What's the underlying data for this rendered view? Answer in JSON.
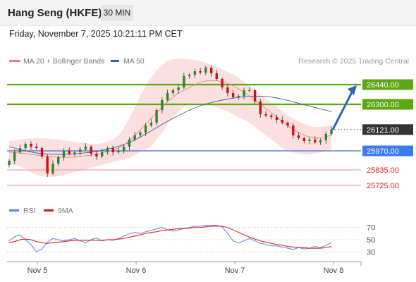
{
  "header": {
    "title": "Hang Seng (HKFE)",
    "timeframe": "30 MIN"
  },
  "datetime": "Friday, November 7, 2025 10:21:11 PM CET",
  "credit": "Research © 2025 Trading Central",
  "colors": {
    "resistance": "#5aa812",
    "support_line": "#3a6fd8",
    "support_label": "#3a7bf0",
    "lower_support": "#f5a3a3",
    "lower_support_text": "#e02020",
    "candle_up": "#2a8a2a",
    "candle_down": "#d01010",
    "ma20": "#f08080",
    "ma50": "#3a5f9a",
    "bollinger": "#fbd7d7",
    "rsi": "#5b85e0",
    "rsi_ma": "#e01010",
    "arrow": "#2f64b8",
    "last_price_bg": "#333333"
  },
  "chart_data": [
    {
      "type": "candlestick",
      "legend": [
        {
          "name": "MA 20 + Bollinger Bands",
          "color": "#f08080"
        },
        {
          "name": "MA 50",
          "color": "#3a5f9a"
        }
      ],
      "x_ticks": [
        "Nov 5",
        "Nov 6",
        "Nov 7",
        "Nov 8"
      ],
      "ylim": [
        25640,
        26540
      ],
      "levels": [
        {
          "label": "26440.00",
          "value": 26440,
          "kind": "resistance"
        },
        {
          "label": "26300.00",
          "value": 26300,
          "kind": "resistance"
        },
        {
          "label": "26121.00",
          "value": 26121,
          "kind": "last"
        },
        {
          "label": "25970.00",
          "value": 25970,
          "kind": "support"
        },
        {
          "label": "25835.00",
          "value": 25835,
          "kind": "minor_support"
        },
        {
          "label": "25725.00",
          "value": 25725,
          "kind": "minor_support"
        }
      ],
      "projection": {
        "from": 26121,
        "to": 26440
      },
      "close": [
        25900,
        25960,
        25990,
        26020,
        26000,
        25990,
        25930,
        25810,
        25880,
        25925,
        25970,
        25950,
        25960,
        25980,
        26000,
        25950,
        25930,
        25960,
        25990,
        25960,
        25970,
        26000,
        26050,
        26080,
        26100,
        26150,
        26170,
        26260,
        26330,
        26380,
        26400,
        26420,
        26500,
        26510,
        26535,
        26525,
        26560,
        26520,
        26480,
        26420,
        26380,
        26350,
        26360,
        26400,
        26400,
        26320,
        26230,
        26220,
        26210,
        26190,
        26170,
        26150,
        26080,
        26060,
        26040,
        26050,
        26030,
        26045,
        26090,
        26121
      ],
      "ma20": [
        25960,
        25958,
        25955,
        25950,
        25945,
        25940,
        25935,
        25930,
        25928,
        25925,
        25924,
        25924,
        25926,
        25930,
        25935,
        25940,
        25945,
        25955,
        25965,
        25975,
        25990,
        26010,
        26040,
        26080,
        26120,
        26160,
        26200,
        26240,
        26280,
        26320,
        26350,
        26380,
        26400,
        26420,
        26440,
        26455,
        26465,
        26470,
        26468,
        26460,
        26450,
        26430,
        26410,
        26385,
        26360,
        26330,
        26300,
        26270,
        26240,
        26210,
        26180,
        26150,
        26120,
        26100,
        26080,
        26070,
        26060,
        26060,
        26070,
        26080
      ],
      "bb_upper": [
        26040,
        26045,
        26050,
        26055,
        26058,
        26060,
        26060,
        26058,
        26055,
        26050,
        26045,
        26040,
        26035,
        26030,
        26025,
        26020,
        26020,
        26025,
        26035,
        26050,
        26080,
        26130,
        26200,
        26280,
        26360,
        26430,
        26490,
        26540,
        26580,
        26610,
        26620,
        26625,
        26625,
        26620,
        26615,
        26605,
        26595,
        26580,
        26565,
        26550,
        26530,
        26510,
        26490,
        26460,
        26430,
        26400,
        26370,
        26340,
        26310,
        26280,
        26250,
        26220,
        26200,
        26180,
        26160,
        26145,
        26140,
        26140,
        26145,
        26150
      ],
      "bb_lower": [
        25880,
        25870,
        25860,
        25840,
        25820,
        25800,
        25790,
        25785,
        25785,
        25790,
        25800,
        25810,
        25820,
        25830,
        25840,
        25850,
        25860,
        25870,
        25880,
        25890,
        25900,
        25910,
        25920,
        25940,
        25960,
        25980,
        26000,
        26050,
        26100,
        26160,
        26210,
        26250,
        26280,
        26300,
        26310,
        26310,
        26305,
        26295,
        26280,
        26265,
        26250,
        26230,
        26210,
        26190,
        26170,
        26140,
        26110,
        26080,
        26050,
        26020,
        25990,
        25970,
        25960,
        25950,
        25945,
        25945,
        25950,
        25960,
        25970,
        25980
      ],
      "ma50": [
        26000,
        25990,
        25980,
        25970,
        25962,
        25955,
        25950,
        25948,
        25946,
        25945,
        25945,
        25946,
        25948,
        25952,
        25956,
        25960,
        25966,
        25973,
        25982,
        25992,
        26002,
        26015,
        26030,
        26048,
        26068,
        26090,
        26112,
        26135,
        26158,
        26180,
        26200,
        26220,
        26240,
        26258,
        26275,
        26290,
        26302,
        26313,
        26322,
        26330,
        26338,
        26344,
        26350,
        26354,
        26357,
        26358,
        26358,
        26356,
        26352,
        26345,
        26337,
        26328,
        26318,
        26308,
        26298,
        26288,
        26278,
        26268,
        26258,
        26248
      ]
    },
    {
      "type": "line",
      "title": "",
      "legend": [
        {
          "name": "RSI",
          "color": "#5b85e0"
        },
        {
          "name": "9MA",
          "color": "#e01010"
        }
      ],
      "y_ticks": [
        70,
        50,
        30
      ],
      "ylim": [
        20,
        80
      ],
      "rsi": [
        48,
        55,
        58,
        50,
        42,
        30,
        35,
        46,
        52,
        50,
        48,
        50,
        52,
        48,
        45,
        50,
        53,
        48,
        50,
        49,
        52,
        56,
        60,
        62,
        60,
        63,
        65,
        68,
        70,
        66,
        64,
        66,
        68,
        70,
        72,
        72,
        74,
        73,
        74,
        71,
        60,
        48,
        45,
        48,
        52,
        48,
        44,
        42,
        40,
        40,
        38,
        36,
        34,
        37,
        35,
        36,
        39,
        37,
        41,
        45
      ],
      "rsi_ma": [
        45,
        47,
        50,
        51,
        50,
        47,
        45,
        44,
        45,
        46,
        47,
        48,
        49,
        49,
        49,
        49,
        49,
        49,
        50,
        50,
        51,
        52,
        54,
        56,
        58,
        60,
        62,
        63,
        65,
        66,
        67,
        68,
        68,
        69,
        70,
        70,
        71,
        72,
        72,
        72,
        70,
        66,
        62,
        58,
        54,
        51,
        48,
        46,
        44,
        42,
        41,
        39,
        38,
        37,
        37,
        36,
        36,
        36,
        37,
        39
      ]
    }
  ]
}
